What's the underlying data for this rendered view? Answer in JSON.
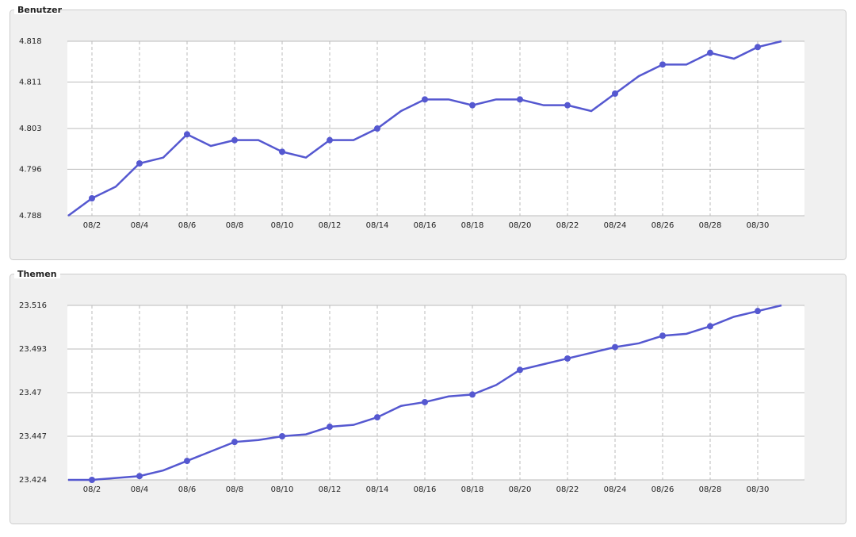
{
  "chart_data": [
    {
      "type": "line",
      "title": "Benutzer",
      "categories": [
        null,
        "08/2",
        null,
        "08/4",
        null,
        "08/6",
        null,
        "08/8",
        null,
        "08/10",
        null,
        "08/12",
        null,
        "08/14",
        null,
        "08/16",
        null,
        "08/18",
        null,
        "08/20",
        null,
        "08/22",
        null,
        "08/24",
        null,
        "08/26",
        null,
        "08/28",
        null,
        "08/30",
        null
      ],
      "values": [
        4.788,
        4.791,
        4.793,
        4.797,
        4.798,
        4.802,
        4.8,
        4.801,
        4.801,
        4.799,
        4.798,
        4.801,
        4.801,
        4.803,
        4.806,
        4.808,
        4.808,
        4.807,
        4.808,
        4.808,
        4.807,
        4.807,
        4.806,
        4.809,
        4.812,
        4.814,
        4.814,
        4.816,
        4.815,
        4.817,
        4.818
      ],
      "color": "#5558d0",
      "ylim": [
        4.788,
        4.818
      ],
      "yticks": [
        4.788,
        4.796,
        4.803,
        4.811,
        4.818
      ],
      "grid": true
    },
    {
      "type": "line",
      "title": "Themen",
      "categories": [
        null,
        "08/2",
        null,
        "08/4",
        null,
        "08/6",
        null,
        "08/8",
        null,
        "08/10",
        null,
        "08/12",
        null,
        "08/14",
        null,
        "08/16",
        null,
        "08/18",
        null,
        "08/20",
        null,
        "08/22",
        null,
        "08/24",
        null,
        "08/26",
        null,
        "08/28",
        null,
        "08/30",
        null
      ],
      "values": [
        23.424,
        23.424,
        23.425,
        23.426,
        23.429,
        23.434,
        23.439,
        23.444,
        23.445,
        23.447,
        23.448,
        23.452,
        23.453,
        23.457,
        23.463,
        23.465,
        23.468,
        23.469,
        23.474,
        23.482,
        23.485,
        23.488,
        23.491,
        23.494,
        23.496,
        23.5,
        23.501,
        23.505,
        23.51,
        23.513,
        23.516
      ],
      "color": "#5558d0",
      "ylim": [
        23.424,
        23.516
      ],
      "yticks": [
        23.424,
        23.447,
        23.47,
        23.493,
        23.516
      ],
      "grid": true
    }
  ]
}
